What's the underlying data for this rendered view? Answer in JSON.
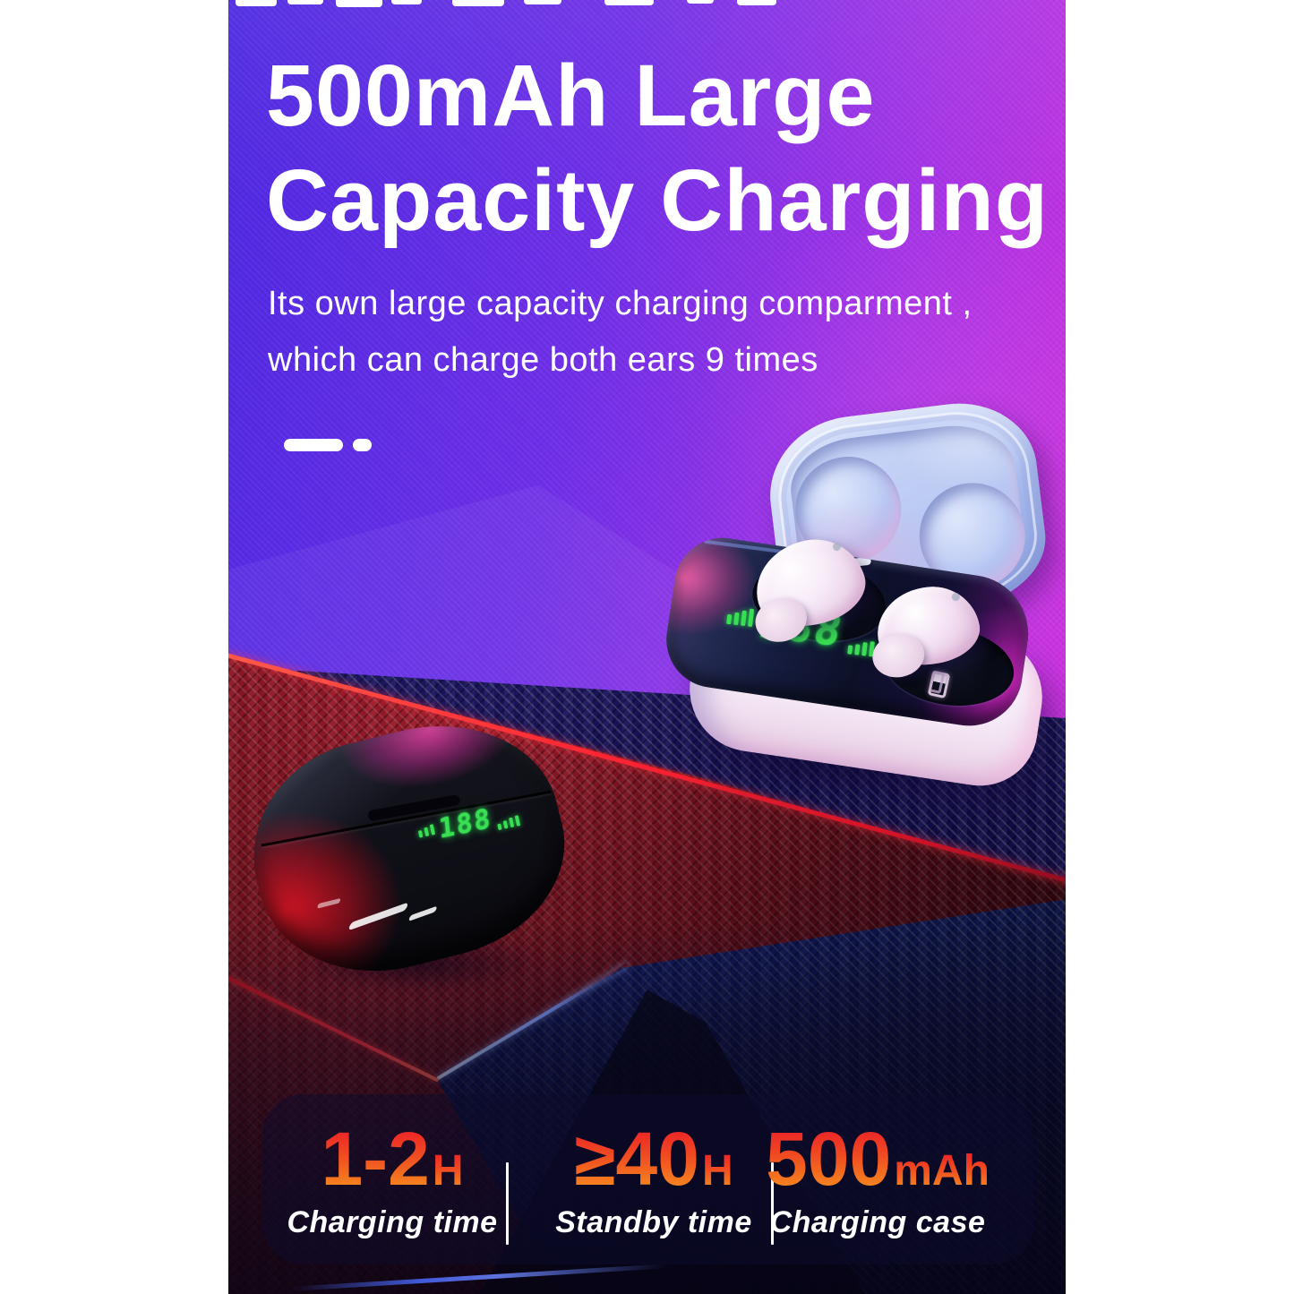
{
  "banner": {
    "heading": {
      "line1": "500mAh Large",
      "line2": "Capacity Charging"
    },
    "description": {
      "line1": "Its own large capacity charging comparment ,",
      "line2": "which can charge both ears 9 times"
    },
    "led": {
      "value": "188"
    },
    "stats": [
      {
        "value": "1-2",
        "unit": "H",
        "label": "Charging time"
      },
      {
        "value": "≥40",
        "unit": "H",
        "label": "Standby time"
      },
      {
        "value": "500",
        "unit": "mAh",
        "label": "Charging case"
      }
    ],
    "colors": {
      "gradient_left": "#4d29e2",
      "gradient_right": "#d930d9",
      "stat_number_top": "#ec2127",
      "stat_number_bottom": "#f68a1e",
      "led_green": "#3ade52",
      "lid_blue": "#b9c9f0",
      "red_platform": "#c02334",
      "text": "#ffffff"
    }
  }
}
